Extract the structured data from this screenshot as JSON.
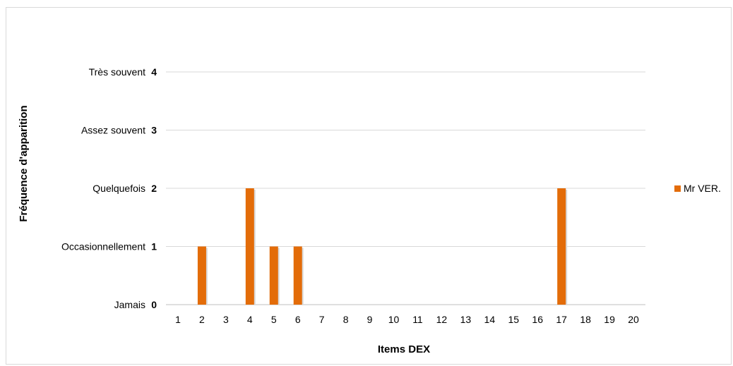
{
  "chart_data": {
    "type": "bar",
    "categories": [
      "1",
      "2",
      "3",
      "4",
      "5",
      "6",
      "7",
      "8",
      "9",
      "10",
      "11",
      "12",
      "13",
      "14",
      "15",
      "16",
      "17",
      "18",
      "19",
      "20"
    ],
    "series": [
      {
        "name": "Mr VER.",
        "color": "#e36c09",
        "values": [
          0,
          1,
          0,
          2,
          1,
          1,
          0,
          0,
          0,
          0,
          0,
          0,
          0,
          0,
          0,
          0,
          2,
          0,
          0,
          0
        ]
      }
    ],
    "ylim": [
      0,
      4
    ],
    "y_ticks": [
      {
        "value": 0,
        "num": "0",
        "label": "Jamais"
      },
      {
        "value": 1,
        "num": "1",
        "label": "Occasionnellement"
      },
      {
        "value": 2,
        "num": "2",
        "label": "Quelquefois"
      },
      {
        "value": 3,
        "num": "3",
        "label": "Assez souvent"
      },
      {
        "value": 4,
        "num": "4",
        "label": "Très souvent"
      }
    ],
    "xlabel": "Items DEX",
    "ylabel": "Fréquence d'apparition",
    "grid": true,
    "legend_position": "right"
  }
}
